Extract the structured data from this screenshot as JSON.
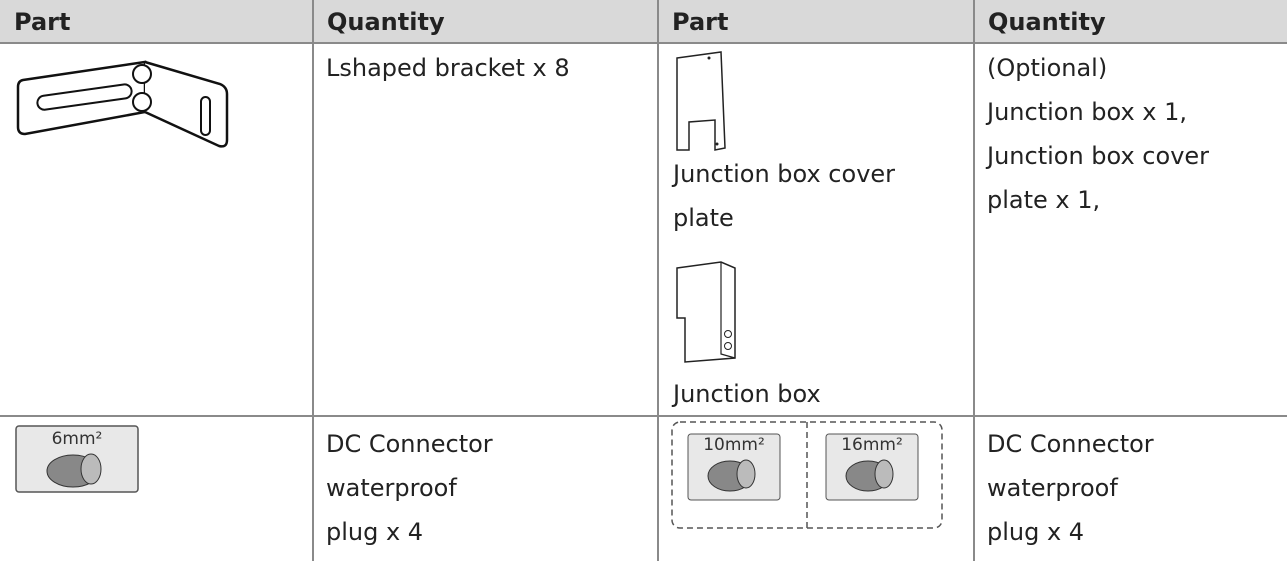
{
  "table": {
    "header": [
      "Part",
      "Quantity",
      "Part",
      "Quantity"
    ],
    "rows": [
      {
        "quantity_left": "Lshaped bracket x 8",
        "part_right_labels": [
          "Junction box cover plate",
          "Junction box"
        ],
        "quantity_right": [
          "(Optional)",
          "Junction box x 1,",
          "Junction box cover plate x 1,"
        ]
      },
      {
        "part_left_label": "6mm²",
        "quantity_left": [
          "DC Connector",
          "waterproof",
          "plug x 4"
        ],
        "part_right_labels": [
          "10mm²",
          "16mm²"
        ],
        "quantity_right": [
          "DC Connector",
          "waterproof",
          "plug x 4"
        ]
      }
    ]
  }
}
